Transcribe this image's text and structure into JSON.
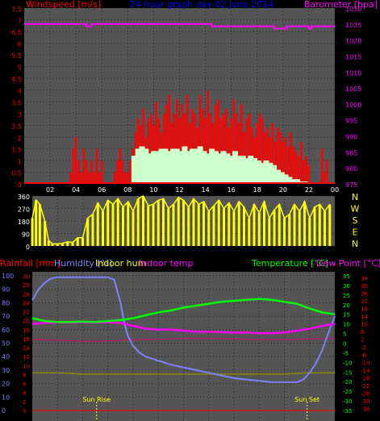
{
  "top": {
    "wind_label": "Windspeed [m/s]",
    "title": "24 hour graph day  02 June 2014",
    "baro_label": "Barometer [hpa]"
  },
  "colors": {
    "wind": "#ff0000",
    "gust": "#ccffcc",
    "baro": "#ff00ff",
    "dir": "#ffff00",
    "rain": "#ff0000",
    "hum": "#8080ff",
    "indoor_hum": "#ffff00",
    "indoor_temp": "#ff00ff",
    "temp": "#00ff00",
    "dew": "#ff00ff",
    "temp_scale": "#00ff00",
    "dew_scale": "#ff0000",
    "title": "#0000ff"
  },
  "chart_data": [
    {
      "type": "bar",
      "xlim": [
        0,
        24
      ],
      "x_ticks": [
        "02",
        "04",
        "06",
        "08",
        "10",
        "12",
        "14",
        "16",
        "18",
        "20",
        "22",
        "00"
      ],
      "ylim": [
        0,
        7.5
      ],
      "y_ticks": [
        "7.5",
        "7",
        "6.5",
        "6",
        "5.5",
        "5",
        "4.5",
        "4",
        "3.5",
        "3",
        "2.5",
        "2",
        "1.5",
        "1",
        "0.5",
        "0"
      ],
      "y2lim": [
        975,
        1030
      ],
      "y2_ticks": [
        "1030",
        "1025",
        "1020",
        "1015",
        "1010",
        "1005",
        "1000",
        "995",
        "990",
        "985",
        "980",
        "975"
      ],
      "baro": {
        "x": [
          0,
          4.8,
          4.8,
          5.2,
          5.2,
          14.5,
          14.5,
          19.3,
          19.3,
          20.3,
          20.3,
          22.0,
          22.0,
          22.2,
          22.2,
          24
        ],
        "y": [
          1025,
          1025,
          1024.3,
          1024.3,
          1025,
          1025,
          1024.3,
          1024.3,
          1023.6,
          1023.6,
          1024.3,
          1024.3,
          1023.6,
          1023.6,
          1024.3,
          1024.3
        ]
      },
      "gust_series": {
        "x": [
          3.6,
          3.8,
          4.0,
          4.2,
          4.4,
          4.6,
          4.8,
          5.0,
          5.2,
          5.4,
          5.6,
          5.8,
          6.0,
          7.0,
          7.2,
          7.4,
          7.6,
          7.8,
          8.0,
          8.2,
          8.4,
          8.6,
          8.8,
          9.0,
          9.2,
          9.4,
          9.6,
          9.8,
          10.0,
          10.2,
          10.4,
          10.6,
          10.8,
          11.0,
          11.2,
          11.4,
          11.6,
          11.8,
          12.0,
          12.2,
          12.4,
          12.6,
          12.8,
          13.0,
          13.2,
          13.4,
          13.6,
          13.8,
          14.0,
          14.2,
          14.4,
          14.6,
          14.8,
          15.0,
          15.2,
          15.4,
          15.6,
          15.8,
          16.0,
          16.2,
          16.4,
          16.6,
          16.8,
          17.0,
          17.2,
          17.4,
          17.6,
          17.8,
          18.0,
          18.2,
          18.4,
          18.6,
          18.8,
          19.0,
          19.2,
          19.4,
          19.6,
          19.8,
          20.0,
          20.2,
          20.4,
          20.6,
          20.8,
          21.0,
          21.2,
          21.4,
          21.6,
          21.8,
          22.0,
          23.0,
          23.2,
          23.4
        ],
        "values": [
          0.5,
          1.5,
          2.0,
          1.0,
          0.5,
          1.5,
          1.0,
          0.5,
          1.0,
          0.5,
          1.5,
          0.5,
          1.0,
          0.5,
          1.0,
          1.5,
          1.0,
          0.5,
          0.5,
          1.0,
          1.5,
          2.2,
          2.8,
          2.5,
          3.2,
          2.0,
          2.8,
          3.0,
          2.5,
          3.5,
          2.8,
          2.2,
          3.0,
          3.4,
          3.8,
          2.6,
          3.0,
          3.6,
          2.8,
          3.4,
          3.0,
          3.8,
          2.6,
          3.2,
          3.0,
          2.4,
          3.8,
          3.2,
          2.8,
          4.0,
          3.0,
          2.6,
          3.4,
          3.6,
          2.8,
          3.0,
          3.2,
          2.4,
          2.8,
          3.6,
          3.0,
          2.6,
          3.4,
          2.2,
          2.8,
          3.0,
          2.4,
          2.0,
          2.6,
          3.0,
          2.8,
          2.2,
          2.4,
          2.0,
          2.6,
          1.8,
          2.4,
          2.2,
          1.8,
          2.0,
          1.6,
          2.2,
          1.6,
          1.4,
          1.2,
          1.8,
          1.0,
          1.2,
          0.8,
          1.5,
          0.5,
          1.0
        ]
      },
      "wind_series": {
        "x": [
          8.5,
          8.8,
          9.1,
          9.4,
          9.7,
          10.0,
          10.3,
          10.6,
          10.9,
          11.2,
          11.5,
          11.8,
          12.1,
          12.4,
          12.7,
          13.0,
          13.3,
          13.6,
          13.9,
          14.2,
          14.5,
          14.8,
          15.1,
          15.4,
          15.7,
          16.0,
          16.3,
          16.6,
          16.9,
          17.2,
          17.5,
          17.8,
          18.1,
          18.4,
          18.7,
          19.0,
          19.3,
          19.6,
          19.9,
          20.2,
          20.5,
          20.8,
          21.1,
          21.4,
          21.7
        ],
        "values": [
          1.2,
          1.5,
          1.6,
          1.5,
          1.3,
          1.4,
          1.4,
          1.5,
          1.5,
          1.4,
          1.5,
          1.5,
          1.4,
          1.6,
          1.4,
          1.5,
          1.5,
          1.6,
          1.4,
          1.3,
          1.5,
          1.4,
          1.3,
          1.4,
          1.3,
          1.2,
          1.4,
          1.2,
          1.2,
          1.1,
          1.2,
          1.1,
          1.0,
          0.9,
          1.0,
          0.9,
          0.8,
          0.6,
          0.5,
          0.4,
          0.3,
          0.2,
          0.2,
          0.1,
          0.1
        ]
      }
    },
    {
      "type": "bar",
      "xlim": [
        0,
        24
      ],
      "ylim": [
        0,
        360
      ],
      "y_ticks": [
        "360",
        "270",
        "180",
        "90",
        "0"
      ],
      "compass": [
        "N",
        "W",
        "S",
        "E",
        "N"
      ],
      "dir_series": {
        "x": [
          0.0,
          0.3,
          0.6,
          1.0,
          1.3,
          1.6,
          2.0,
          2.4,
          2.8,
          3.2,
          3.6,
          4.0,
          4.4,
          4.8,
          5.2,
          5.6,
          6.0,
          6.4,
          6.8,
          7.2,
          7.6,
          8.0,
          8.4,
          8.8,
          9.2,
          9.6,
          10.0,
          10.4,
          10.8,
          11.2,
          11.6,
          12.0,
          12.4,
          12.8,
          13.2,
          13.6,
          14.0,
          14.4,
          14.8,
          15.2,
          15.6,
          16.0,
          16.4,
          16.8,
          17.2,
          17.6,
          18.0,
          18.4,
          18.8,
          19.2,
          19.6,
          20.0,
          20.4,
          20.8,
          21.2,
          21.6,
          22.0,
          22.4,
          22.8,
          23.2,
          23.6
        ],
        "values": [
          200,
          330,
          300,
          180,
          40,
          15,
          15,
          20,
          30,
          25,
          60,
          60,
          200,
          230,
          310,
          250,
          330,
          300,
          340,
          280,
          320,
          250,
          340,
          360,
          290,
          300,
          330,
          340,
          270,
          300,
          350,
          330,
          280,
          340,
          300,
          320,
          250,
          290,
          330,
          270,
          310,
          250,
          320,
          280,
          200,
          300,
          240,
          320,
          200,
          260,
          300,
          200,
          230,
          300,
          250,
          320,
          200,
          280,
          300,
          250,
          300
        ]
      }
    },
    {
      "type": "line",
      "xlim": [
        0,
        24
      ],
      "left_labels": [
        "Rainfall [mm]",
        "Humidity [%]",
        "Indoor hum",
        "Indoor temp"
      ],
      "right_labels": [
        "Temperature [°C]",
        "Dew Point [°C]"
      ],
      "humidity_ticks": [
        "100",
        "90",
        "80",
        "70",
        "60",
        "50",
        "40",
        "30",
        "20",
        "10",
        "0"
      ],
      "rain_ticks": [
        "30",
        "28",
        "26",
        "24",
        "22",
        "20",
        "18",
        "16",
        "14",
        "12",
        "10",
        "8",
        "6",
        "4",
        "2",
        "0"
      ],
      "temp_ticks": [
        "35",
        "30",
        "25",
        "20",
        "15",
        "10",
        "5",
        "0",
        "-5",
        "-10",
        "-15",
        "-20",
        "-25",
        "-30",
        "-35"
      ],
      "dew_ticks": [
        "34",
        "30",
        "26",
        "22",
        "18",
        "14",
        "10",
        "6",
        "2",
        "-2",
        "-6",
        "-10",
        "-14",
        "-18",
        "-22",
        "-26",
        "-30",
        "-34"
      ],
      "temp_range": [
        -35,
        35
      ],
      "annotations": [
        "Sun Rise",
        "Sun Set"
      ],
      "sunrise_hour": 5.1,
      "sunset_hour": 21.8,
      "humidity": {
        "x": [
          0,
          0.5,
          1.0,
          1.5,
          2.0,
          2.5,
          3.0,
          4.0,
          5.0,
          6.0,
          6.5,
          7.0,
          7.3,
          7.6,
          8.0,
          8.5,
          9.0,
          10.0,
          11.0,
          12.0,
          13.0,
          14.0,
          15.0,
          16.0,
          17.0,
          18.0,
          19.0,
          20.0,
          21.0,
          21.5,
          22.0,
          22.5,
          23.0,
          23.5,
          24
        ],
        "values": [
          82,
          90,
          95,
          98,
          99,
          99,
          99,
          99,
          99,
          99,
          97,
          80,
          65,
          55,
          48,
          43,
          40,
          37,
          34,
          32,
          30,
          28,
          26,
          24,
          23,
          22,
          21,
          21,
          21,
          23,
          28,
          35,
          45,
          58,
          70
        ]
      },
      "temperature": {
        "x": [
          0,
          1,
          2,
          3,
          4,
          5,
          6,
          7,
          8,
          9,
          10,
          11,
          12,
          13,
          14,
          15,
          16,
          17,
          18,
          19,
          20,
          21,
          22,
          23,
          24
        ],
        "values": [
          13.0,
          11.5,
          11.0,
          11.0,
          11.2,
          11.0,
          11.5,
          12.0,
          13.0,
          14.5,
          16.0,
          17.0,
          18.5,
          19.5,
          20.5,
          21.5,
          22.0,
          22.5,
          23.0,
          22.5,
          21.5,
          20.5,
          18.0,
          16.0,
          15.0
        ]
      },
      "dew_point": {
        "x": [
          0,
          1,
          2,
          3,
          4,
          5,
          6,
          7,
          8,
          9,
          10,
          11,
          12,
          13,
          14,
          15,
          16,
          17,
          18,
          19,
          20,
          21,
          22,
          23,
          24
        ],
        "values": [
          10.0,
          10.5,
          10.8,
          10.8,
          10.9,
          10.8,
          10.8,
          10.5,
          9.0,
          7.5,
          7.0,
          7.0,
          6.5,
          6.0,
          6.0,
          5.8,
          5.5,
          5.5,
          5.2,
          5.2,
          5.5,
          6.5,
          7.5,
          9.0,
          10.0
        ]
      },
      "indoor_temp": {
        "x": [
          0,
          2,
          4,
          6,
          8,
          10,
          12,
          14,
          16,
          18,
          20,
          22,
          24
        ],
        "values": [
          2.0,
          1.5,
          1.0,
          1.2,
          1.8,
          2.0,
          2.5,
          2.5,
          2.2,
          2.0,
          1.8,
          2.2,
          2.5
        ]
      },
      "indoor_hum": {
        "x": [
          0,
          2,
          4,
          6,
          8,
          10,
          12,
          14,
          16,
          18,
          20,
          22,
          24
        ],
        "values": [
          28,
          28,
          27,
          27,
          27,
          27,
          27,
          27,
          27,
          27,
          27,
          28,
          28
        ]
      },
      "rainfall": {
        "x": [
          0,
          24
        ],
        "values": [
          0,
          0
        ]
      }
    }
  ]
}
